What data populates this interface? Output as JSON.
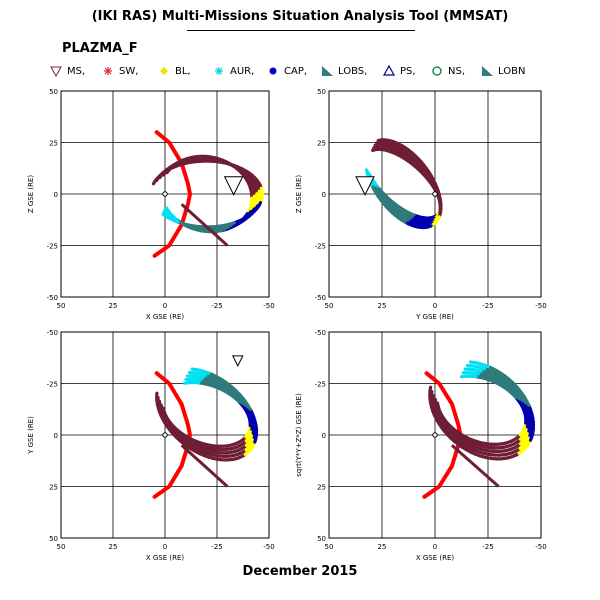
{
  "header": {
    "title": "(IKI RAS) Multi-Missions Situation Analysis Tool (MMSAT)",
    "mission": "PLAZMA_F",
    "footer": "December 2015"
  },
  "legend": [
    {
      "label": "MS,",
      "symbol": "triangle-down",
      "color": "#7a1f3d"
    },
    {
      "label": "SW,",
      "symbol": "asterisk",
      "color": "#e03030"
    },
    {
      "label": "BL,",
      "symbol": "diamond",
      "color": "#f0e000"
    },
    {
      "label": "AUR,",
      "symbol": "asterisk",
      "color": "#00d0e0"
    },
    {
      "label": "CAP,",
      "symbol": "circle-filled",
      "color": "#0000c0"
    },
    {
      "label": "LOBS,",
      "symbol": "lobe-wedge",
      "color": "#2f7f7f"
    },
    {
      "label": "PS,",
      "symbol": "triangle-up",
      "color": "#000080"
    },
    {
      "label": "NS,",
      "symbol": "circle-open",
      "color": "#007f3f"
    },
    {
      "label": "LOBN",
      "symbol": "lobe-wedge",
      "color": "#2f7f7f"
    }
  ],
  "colors": {
    "msh": "#6e1e35",
    "sw": "#ff0000",
    "bl": "#ffff00",
    "aur": "#00e0f0",
    "cap": "#0000b0",
    "lobe": "#2f7a7a",
    "axis": "#000000"
  },
  "chart_data": [
    {
      "type": "scatter",
      "xlabel": "X GSE (RE)",
      "ylabel": "Z GSE (RE)",
      "xlim": [
        50,
        -50
      ],
      "ylim": [
        -50,
        50
      ],
      "xticks": [
        "50",
        "25",
        "0",
        "-25",
        "-50"
      ],
      "yticks": [
        "-50",
        "-25",
        "0",
        "25",
        "50"
      ],
      "bow_shock": [
        [
          4,
          30
        ],
        [
          -2,
          25
        ],
        [
          -8,
          15
        ],
        [
          -11,
          5
        ],
        [
          -12,
          0
        ],
        [
          -11,
          -5
        ],
        [
          -8,
          -15
        ],
        [
          -2,
          -25
        ],
        [
          5,
          -30
        ]
      ],
      "orbit_apogee": [
        -33,
        4
      ]
    },
    {
      "type": "scatter",
      "xlabel": "Y GSE (RE)",
      "ylabel": "Z GSE (RE)",
      "xlim": [
        50,
        -50
      ],
      "ylim": [
        -50,
        50
      ],
      "xticks": [
        "50",
        "25",
        "0",
        "-25",
        "-50"
      ],
      "yticks": [
        "-50",
        "-25",
        "0",
        "25",
        "50"
      ],
      "orbit_apogee": [
        33,
        4
      ]
    },
    {
      "type": "scatter",
      "xlabel": "X GSE (RE)",
      "ylabel": "Y GSE (RE)",
      "xlim": [
        50,
        -50
      ],
      "ylim": [
        50,
        -50
      ],
      "xticks": [
        "50",
        "25",
        "0",
        "-25",
        "-50"
      ],
      "yticks": [
        "-50",
        "-25",
        "0",
        "25",
        "50"
      ],
      "bow_shock": [
        [
          4,
          -30
        ],
        [
          -2,
          -25
        ],
        [
          -8,
          -15
        ],
        [
          -11,
          -5
        ],
        [
          -12,
          0
        ],
        [
          -11,
          5
        ],
        [
          -8,
          15
        ],
        [
          -2,
          25
        ],
        [
          5,
          30
        ]
      ],
      "orbit_apogee": [
        -35,
        -36
      ]
    },
    {
      "type": "scatter",
      "xlabel": "X GSE (RE)",
      "ylabel": "sqrt(Y*Y+Z*Z) GSE (RE)",
      "xlim": [
        50,
        -50
      ],
      "ylim": [
        50,
        -50
      ],
      "xticks": [
        "50",
        "25",
        "0",
        "-25",
        "-50"
      ],
      "yticks": [
        "-50",
        "-25",
        "0",
        "25",
        "50"
      ],
      "bow_shock": [
        [
          4,
          -30
        ],
        [
          -2,
          -25
        ],
        [
          -8,
          -15
        ],
        [
          -11,
          -5
        ],
        [
          -12,
          0
        ],
        [
          -11,
          5
        ],
        [
          -8,
          15
        ],
        [
          -2,
          25
        ],
        [
          5,
          30
        ]
      ]
    }
  ]
}
